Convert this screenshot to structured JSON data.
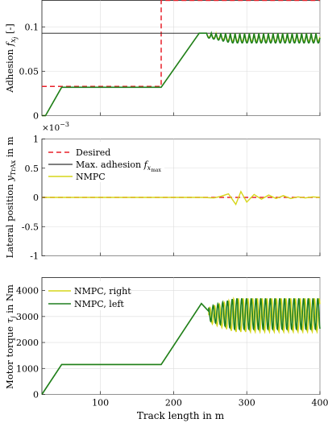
{
  "colors": {
    "desired": "#e8202a",
    "max_adhesion": "#333333",
    "nmpc": "#d6d61a",
    "nmpc_right": "#d6d61a",
    "nmpc_left": "#1e7f1e"
  },
  "chart_data": [
    {
      "type": "line",
      "ylabel": "Adhesion f_{x_j} [-]",
      "ylabel_main": "Adhesion ",
      "ylabel_sym": "f",
      "ylabel_sub": "x",
      "ylabel_subsub": "j",
      "ylabel_unit": " [-]",
      "xlim": [
        20,
        400
      ],
      "ylim": [
        0,
        0.13
      ],
      "yticks": [
        0,
        0.05,
        0.1
      ],
      "ytick_labels": [
        "0",
        "0.05",
        "0.1"
      ],
      "xticks": [
        100,
        200,
        300,
        400
      ],
      "grid": true,
      "series": [
        {
          "key": "desired",
          "x": [
            20,
            183,
            183,
            400
          ],
          "y": [
            0.033,
            0.033,
            0.13,
            0.13
          ]
        },
        {
          "key": "max_adhesion",
          "x": [
            20,
            400
          ],
          "y": [
            0.093,
            0.093
          ]
        },
        {
          "key": "nmpc_area",
          "x": [
            20,
            25,
            47,
            183,
            235,
            245,
            400
          ],
          "y": [
            0,
            0,
            0.032,
            0.032,
            0.093,
            0.093,
            0.093
          ],
          "osc_from": 245,
          "osc_amp": 0.004,
          "osc_period": 6.5
        },
        {
          "key": "nmpc_left_area",
          "x": [
            20,
            25,
            47,
            183,
            235,
            245,
            400
          ],
          "y": [
            0,
            0,
            0.032,
            0.032,
            0.093,
            0.093,
            0.093
          ],
          "osc_from": 245,
          "osc_amp": 0.005,
          "osc_period": 6.5
        }
      ]
    },
    {
      "type": "line",
      "ylabel": "Lateral position y_TrAx in m",
      "ylabel_main": "Lateral position ",
      "ylabel_sym": "y",
      "ylabel_sub": "TrAx",
      "ylabel_unit": " in m",
      "scale_exponent": "×10",
      "scale_power": "−3",
      "xlim": [
        20,
        400
      ],
      "ylim": [
        -1,
        1
      ],
      "yticks": [
        -1,
        -0.5,
        0,
        0.5,
        1
      ],
      "ytick_labels": [
        "-1",
        "-0.5",
        "0",
        "0.5",
        "1"
      ],
      "xticks": [
        100,
        200,
        300,
        400
      ],
      "grid": true,
      "legend": {
        "placement": "top-left",
        "entries": [
          {
            "key": "desired",
            "label": "Desired"
          },
          {
            "key": "max_adhesion",
            "label": "Max. adhesion ",
            "sym": "f",
            "sub": "x",
            "subsub": "max"
          },
          {
            "key": "nmpc",
            "label": "NMPC"
          }
        ]
      },
      "series": [
        {
          "key": "desired",
          "x": [
            20,
            400
          ],
          "y": [
            0,
            0
          ]
        },
        {
          "key": "nmpc",
          "x": [
            20,
            240,
            255,
            265,
            275,
            285,
            292,
            300,
            310,
            320,
            330,
            340,
            350,
            360,
            370,
            380,
            390,
            400
          ],
          "y": [
            0,
            0,
            -0.01,
            0.02,
            0.06,
            -0.12,
            0.1,
            -0.08,
            0.05,
            -0.03,
            0.04,
            -0.02,
            0.03,
            -0.02,
            0.01,
            -0.01,
            0.01,
            0
          ]
        }
      ]
    },
    {
      "type": "line",
      "ylabel": "Motor torque tau_j in Nm",
      "ylabel_main": "Motor torque ",
      "ylabel_sym": "τ",
      "ylabel_sub": "j",
      "ylabel_unit": " in Nm",
      "xlabel": "Track length in m",
      "xlim": [
        20,
        400
      ],
      "ylim": [
        0,
        4500
      ],
      "yticks": [
        0,
        1000,
        2000,
        3000,
        4000
      ],
      "ytick_labels": [
        "0",
        "1000",
        "2000",
        "3000",
        "4000"
      ],
      "xticks": [
        100,
        200,
        300,
        400
      ],
      "xtick_labels": [
        "100",
        "200",
        "300",
        "400"
      ],
      "grid": true,
      "legend": {
        "placement": "top-left",
        "entries": [
          {
            "key": "nmpc_right",
            "label": "NMPC, right"
          },
          {
            "key": "nmpc_left",
            "label": "NMPC, left"
          }
        ]
      },
      "series": [
        {
          "key": "nmpc_right",
          "x": [
            20,
            47,
            183,
            238,
            248
          ],
          "y": [
            0,
            1150,
            1150,
            3500,
            3200
          ],
          "osc_from": 248,
          "osc_center": 3050,
          "osc_amp": 650,
          "osc_period": 6.5,
          "osc_phase": 0
        },
        {
          "key": "nmpc_left",
          "x": [
            20,
            47,
            183,
            238,
            248
          ],
          "y": [
            0,
            1150,
            1150,
            3500,
            3200
          ],
          "osc_from": 248,
          "osc_center": 3100,
          "osc_amp": 600,
          "osc_period": 6.5,
          "osc_phase": 2.0
        }
      ]
    }
  ]
}
